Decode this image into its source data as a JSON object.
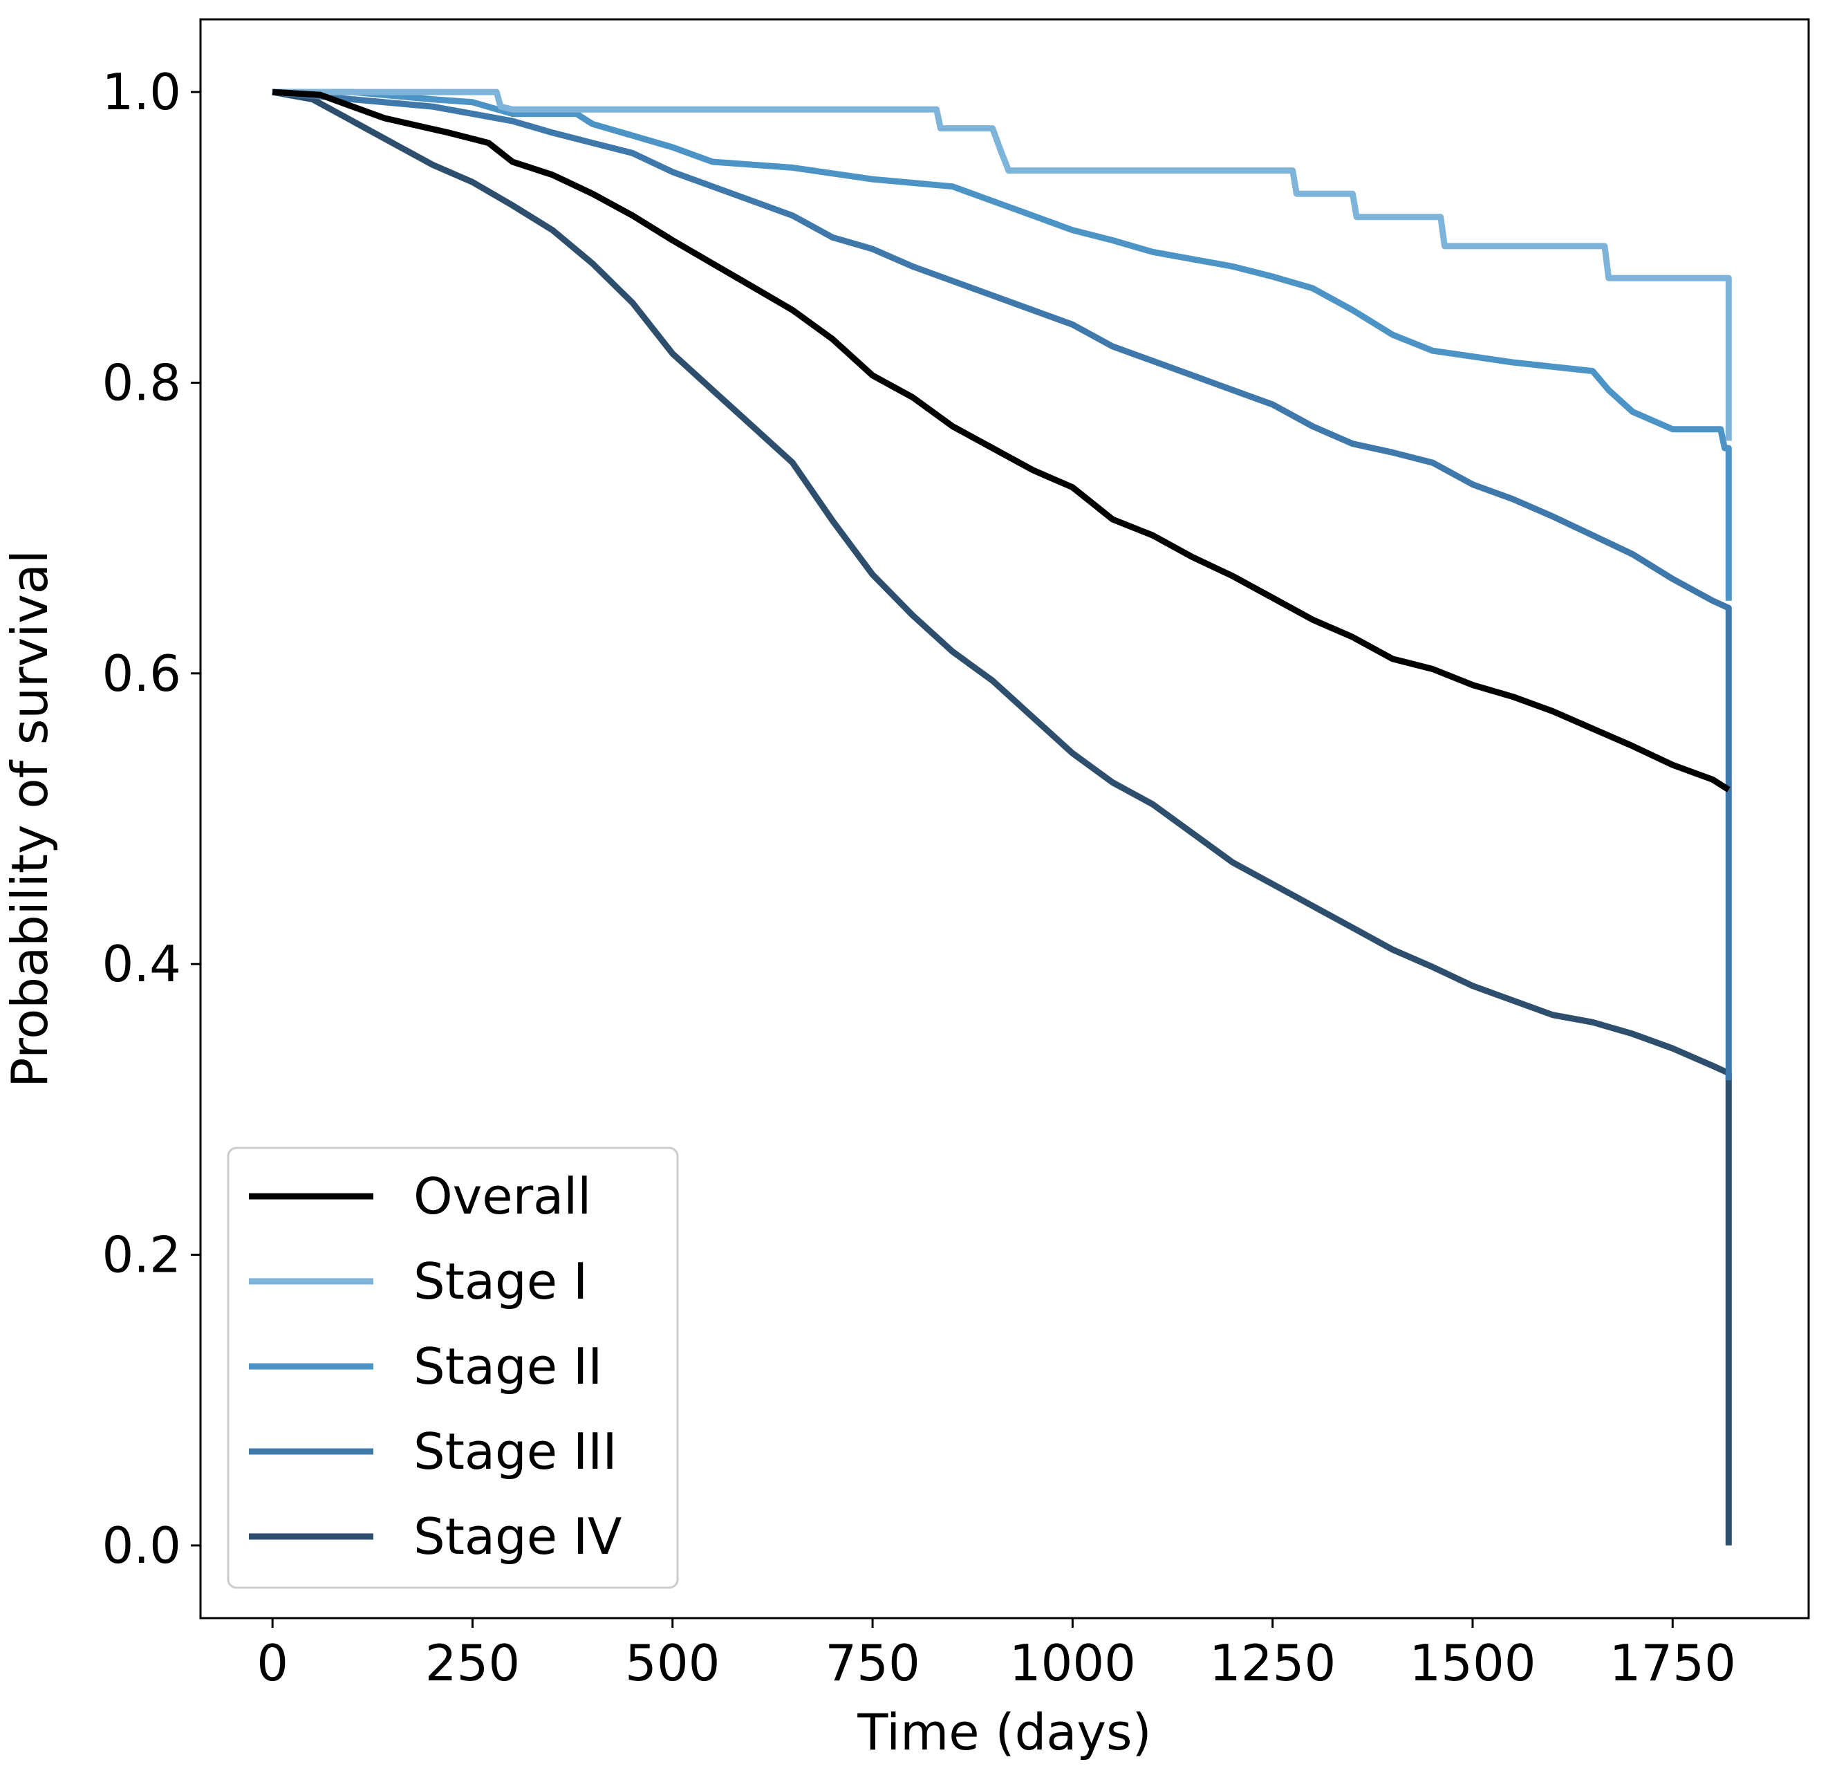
{
  "chart_data": {
    "type": "line",
    "title": "",
    "xlabel": "Time (days)",
    "ylabel": "Probability of survival",
    "xlim": [
      -90,
      1920
    ],
    "ylim": [
      -0.05,
      1.05
    ],
    "xticks": [
      0,
      250,
      500,
      750,
      1000,
      1250,
      1500,
      1750
    ],
    "xtick_labels": [
      "0",
      "250",
      "500",
      "750",
      "1000",
      "1250",
      "1500",
      "1750"
    ],
    "yticks": [
      0.0,
      0.2,
      0.4,
      0.6,
      0.8,
      1.0
    ],
    "ytick_labels": [
      "0.0",
      "0.2",
      "0.4",
      "0.6",
      "0.8",
      "1.0"
    ],
    "grid": false,
    "legend_position": "lower-left",
    "series": [
      {
        "name": "Overall",
        "color": "#000000",
        "points": [
          [
            0,
            1.0
          ],
          [
            60,
            0.998
          ],
          [
            100,
            0.99
          ],
          [
            140,
            0.982
          ],
          [
            180,
            0.977
          ],
          [
            220,
            0.972
          ],
          [
            270,
            0.965
          ],
          [
            300,
            0.952
          ],
          [
            350,
            0.943
          ],
          [
            400,
            0.93
          ],
          [
            450,
            0.915
          ],
          [
            500,
            0.898
          ],
          [
            550,
            0.882
          ],
          [
            600,
            0.866
          ],
          [
            650,
            0.85
          ],
          [
            700,
            0.83
          ],
          [
            750,
            0.805
          ],
          [
            800,
            0.79
          ],
          [
            850,
            0.77
          ],
          [
            900,
            0.755
          ],
          [
            950,
            0.74
          ],
          [
            1000,
            0.728
          ],
          [
            1050,
            0.706
          ],
          [
            1100,
            0.695
          ],
          [
            1150,
            0.68
          ],
          [
            1200,
            0.667
          ],
          [
            1250,
            0.652
          ],
          [
            1300,
            0.637
          ],
          [
            1350,
            0.625
          ],
          [
            1400,
            0.61
          ],
          [
            1450,
            0.603
          ],
          [
            1500,
            0.592
          ],
          [
            1550,
            0.584
          ],
          [
            1600,
            0.574
          ],
          [
            1650,
            0.562
          ],
          [
            1700,
            0.55
          ],
          [
            1750,
            0.537
          ],
          [
            1800,
            0.527
          ],
          [
            1820,
            0.52
          ],
          [
            1820,
            0.52
          ]
        ]
      },
      {
        "name": "Stage I",
        "color": "#7eb3da",
        "points": [
          [
            0,
            1.0
          ],
          [
            280,
            1.0
          ],
          [
            285,
            0.99
          ],
          [
            300,
            0.988
          ],
          [
            830,
            0.988
          ],
          [
            835,
            0.975
          ],
          [
            900,
            0.975
          ],
          [
            910,
            0.96
          ],
          [
            920,
            0.946
          ],
          [
            1275,
            0.946
          ],
          [
            1280,
            0.93
          ],
          [
            1350,
            0.93
          ],
          [
            1355,
            0.914
          ],
          [
            1460,
            0.914
          ],
          [
            1465,
            0.894
          ],
          [
            1665,
            0.894
          ],
          [
            1670,
            0.872
          ],
          [
            1820,
            0.872
          ],
          [
            1820,
            0.76
          ]
        ]
      },
      {
        "name": "Stage II",
        "color": "#4c93c6",
        "points": [
          [
            0,
            1.0
          ],
          [
            100,
            1.0
          ],
          [
            200,
            0.995
          ],
          [
            250,
            0.993
          ],
          [
            300,
            0.985
          ],
          [
            380,
            0.985
          ],
          [
            400,
            0.978
          ],
          [
            450,
            0.97
          ],
          [
            500,
            0.962
          ],
          [
            550,
            0.952
          ],
          [
            650,
            0.948
          ],
          [
            750,
            0.94
          ],
          [
            850,
            0.935
          ],
          [
            900,
            0.925
          ],
          [
            950,
            0.915
          ],
          [
            1000,
            0.905
          ],
          [
            1050,
            0.898
          ],
          [
            1100,
            0.89
          ],
          [
            1150,
            0.885
          ],
          [
            1200,
            0.88
          ],
          [
            1250,
            0.873
          ],
          [
            1300,
            0.865
          ],
          [
            1350,
            0.85
          ],
          [
            1400,
            0.833
          ],
          [
            1450,
            0.822
          ],
          [
            1500,
            0.818
          ],
          [
            1550,
            0.814
          ],
          [
            1650,
            0.808
          ],
          [
            1670,
            0.795
          ],
          [
            1700,
            0.78
          ],
          [
            1750,
            0.768
          ],
          [
            1810,
            0.768
          ],
          [
            1815,
            0.755
          ],
          [
            1820,
            0.755
          ],
          [
            1820,
            0.65
          ]
        ]
      },
      {
        "name": "Stage III",
        "color": "#3f79ab",
        "points": [
          [
            0,
            1.0
          ],
          [
            100,
            0.995
          ],
          [
            200,
            0.99
          ],
          [
            250,
            0.985
          ],
          [
            300,
            0.98
          ],
          [
            350,
            0.972
          ],
          [
            400,
            0.965
          ],
          [
            450,
            0.958
          ],
          [
            500,
            0.945
          ],
          [
            550,
            0.935
          ],
          [
            600,
            0.925
          ],
          [
            650,
            0.915
          ],
          [
            700,
            0.9
          ],
          [
            750,
            0.892
          ],
          [
            800,
            0.88
          ],
          [
            850,
            0.87
          ],
          [
            900,
            0.86
          ],
          [
            950,
            0.85
          ],
          [
            1000,
            0.84
          ],
          [
            1050,
            0.825
          ],
          [
            1100,
            0.815
          ],
          [
            1150,
            0.805
          ],
          [
            1200,
            0.795
          ],
          [
            1250,
            0.785
          ],
          [
            1300,
            0.77
          ],
          [
            1350,
            0.758
          ],
          [
            1400,
            0.752
          ],
          [
            1450,
            0.745
          ],
          [
            1500,
            0.73
          ],
          [
            1550,
            0.72
          ],
          [
            1600,
            0.708
          ],
          [
            1650,
            0.695
          ],
          [
            1700,
            0.682
          ],
          [
            1750,
            0.665
          ],
          [
            1800,
            0.65
          ],
          [
            1820,
            0.645
          ],
          [
            1820,
            0.32
          ]
        ]
      },
      {
        "name": "Stage IV",
        "color": "#2d4f6d",
        "points": [
          [
            0,
            1.0
          ],
          [
            50,
            0.995
          ],
          [
            100,
            0.98
          ],
          [
            150,
            0.965
          ],
          [
            200,
            0.95
          ],
          [
            250,
            0.938
          ],
          [
            300,
            0.922
          ],
          [
            350,
            0.905
          ],
          [
            400,
            0.882
          ],
          [
            450,
            0.855
          ],
          [
            500,
            0.82
          ],
          [
            550,
            0.795
          ],
          [
            600,
            0.77
          ],
          [
            650,
            0.745
          ],
          [
            700,
            0.705
          ],
          [
            750,
            0.668
          ],
          [
            800,
            0.64
          ],
          [
            850,
            0.615
          ],
          [
            900,
            0.595
          ],
          [
            950,
            0.57
          ],
          [
            1000,
            0.545
          ],
          [
            1050,
            0.525
          ],
          [
            1100,
            0.51
          ],
          [
            1150,
            0.49
          ],
          [
            1200,
            0.47
          ],
          [
            1250,
            0.455
          ],
          [
            1300,
            0.44
          ],
          [
            1350,
            0.425
          ],
          [
            1400,
            0.41
          ],
          [
            1450,
            0.398
          ],
          [
            1500,
            0.385
          ],
          [
            1550,
            0.375
          ],
          [
            1600,
            0.365
          ],
          [
            1650,
            0.36
          ],
          [
            1700,
            0.352
          ],
          [
            1750,
            0.342
          ],
          [
            1800,
            0.33
          ],
          [
            1820,
            0.325
          ],
          [
            1820,
            0.0
          ]
        ]
      }
    ]
  }
}
